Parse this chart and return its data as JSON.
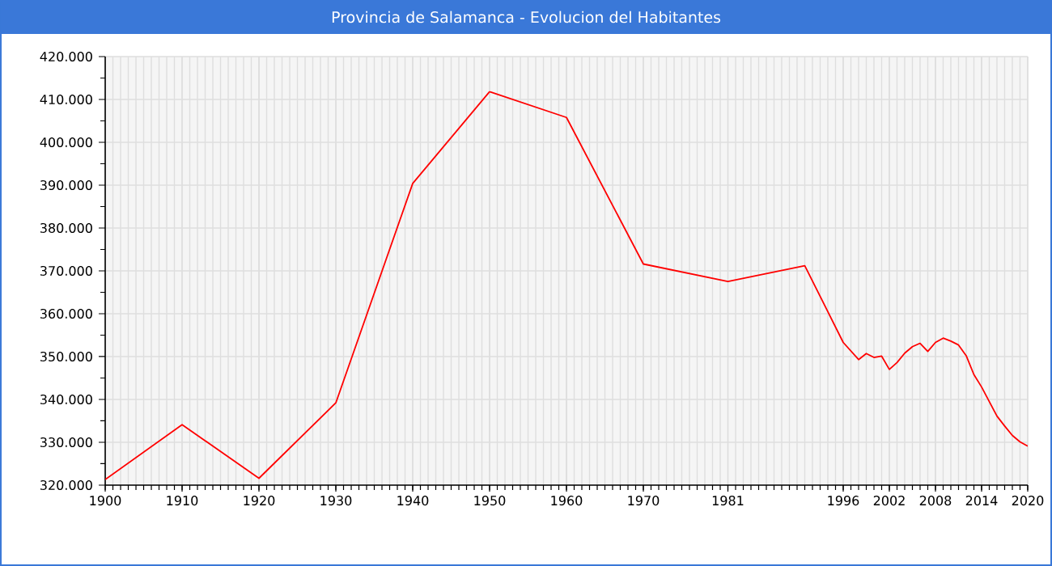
{
  "chart_data": {
    "type": "line",
    "title": "Provincia de Salamanca - Evolucion del Habitantes",
    "x": [
      1900,
      1910,
      1920,
      1930,
      1940,
      1950,
      1960,
      1970,
      1981,
      1991,
      1996,
      1998,
      1999,
      2000,
      2001,
      2002,
      2003,
      2004,
      2005,
      2006,
      2007,
      2008,
      2009,
      2010,
      2011,
      2012,
      2013,
      2014,
      2015,
      2016,
      2017,
      2018,
      2019,
      2020
    ],
    "series": [
      {
        "color": "#ff0000",
        "values": [
          321300,
          334100,
          321600,
          339200,
          390400,
          411800,
          405800,
          371600,
          367500,
          371200,
          353300,
          349300,
          350700,
          349800,
          350100,
          347000,
          348600,
          350800,
          352300,
          353100,
          351200,
          353300,
          354300,
          353600,
          352700,
          350200,
          345800,
          342900,
          339500,
          336100,
          333800,
          331600,
          330100,
          329100
        ]
      }
    ],
    "xlim": [
      1900,
      2020
    ],
    "ylim": [
      320000,
      420000
    ],
    "xticks": [
      1900,
      1910,
      1920,
      1930,
      1940,
      1950,
      1960,
      1970,
      1981,
      1996,
      2002,
      2008,
      2014,
      2020
    ],
    "yticks": [
      {
        "value": 320000,
        "label": "320.000"
      },
      {
        "value": 330000,
        "label": "330.000"
      },
      {
        "value": 340000,
        "label": "340.000"
      },
      {
        "value": 350000,
        "label": "350.000"
      },
      {
        "value": 360000,
        "label": "360.000"
      },
      {
        "value": 370000,
        "label": "370.000"
      },
      {
        "value": 380000,
        "label": "380.000"
      },
      {
        "value": 390000,
        "label": "390.000"
      },
      {
        "value": 400000,
        "label": "400.000"
      },
      {
        "value": 410000,
        "label": "410.000"
      },
      {
        "value": 420000,
        "label": "420.000"
      }
    ],
    "grid": true,
    "legend": false,
    "marker": "none",
    "line_style": "solid"
  }
}
